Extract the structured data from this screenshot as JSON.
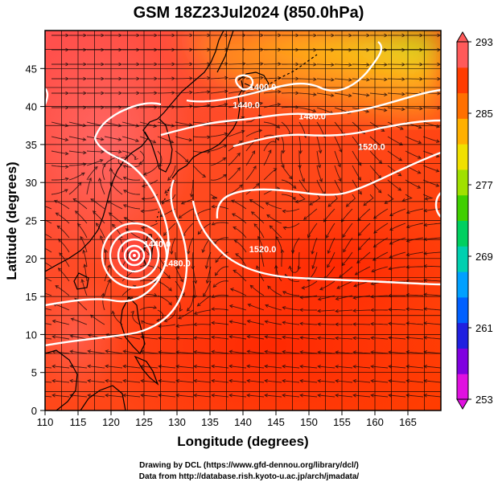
{
  "title": "GSM 18Z23Jul2024 (850.0hPa)",
  "xlabel": "Longitude (degrees)",
  "ylabel": "Latitude (degrees)",
  "credits": [
    "Drawing by DCL (https://www.gfd-dennou.org/library/dcl/)",
    "Data from http://database.rish.kyoto-u.ac.jp/arch/jmadata/"
  ],
  "chart_data": {
    "type": "heatmap",
    "field": "temperature with geopotential height contours and streamlines",
    "x_range": [
      110,
      170
    ],
    "y_range": [
      0,
      50
    ],
    "x_ticks": [
      110,
      115,
      120,
      125,
      130,
      135,
      140,
      145,
      150,
      155,
      160,
      165
    ],
    "y_ticks": [
      0,
      5,
      10,
      15,
      20,
      25,
      30,
      35,
      40,
      45
    ],
    "grid": true,
    "colorbar": {
      "min": 253,
      "max": 293,
      "tick_labels": [
        253,
        261,
        269,
        277,
        285,
        293
      ],
      "placement": "right",
      "colors": [
        "#e010e0",
        "#8000e0",
        "#2020e0",
        "#0060ff",
        "#00a0ff",
        "#00d0b0",
        "#00d060",
        "#40d000",
        "#a0e000",
        "#f0e000",
        "#ffb000",
        "#ff7000",
        "#ff3c00",
        "#ff5a5a"
      ]
    },
    "contour_labels": [
      {
        "text": "1400.0",
        "lon": 143,
        "lat": 42.2
      },
      {
        "text": "1440.0",
        "lon": 140.5,
        "lat": 39.8
      },
      {
        "text": "1480.0",
        "lon": 150.5,
        "lat": 38.3
      },
      {
        "text": "1520.0",
        "lon": 159.5,
        "lat": 34.3
      },
      {
        "text": "1520.0",
        "lon": 143,
        "lat": 20.8
      },
      {
        "text": "1440.0",
        "lon": 127,
        "lat": 21.5
      },
      {
        "text": "1480.0",
        "lon": 130,
        "lat": 19
      }
    ],
    "cyclone_center": {
      "lon": 124.8,
      "lat": 22.8
    }
  }
}
